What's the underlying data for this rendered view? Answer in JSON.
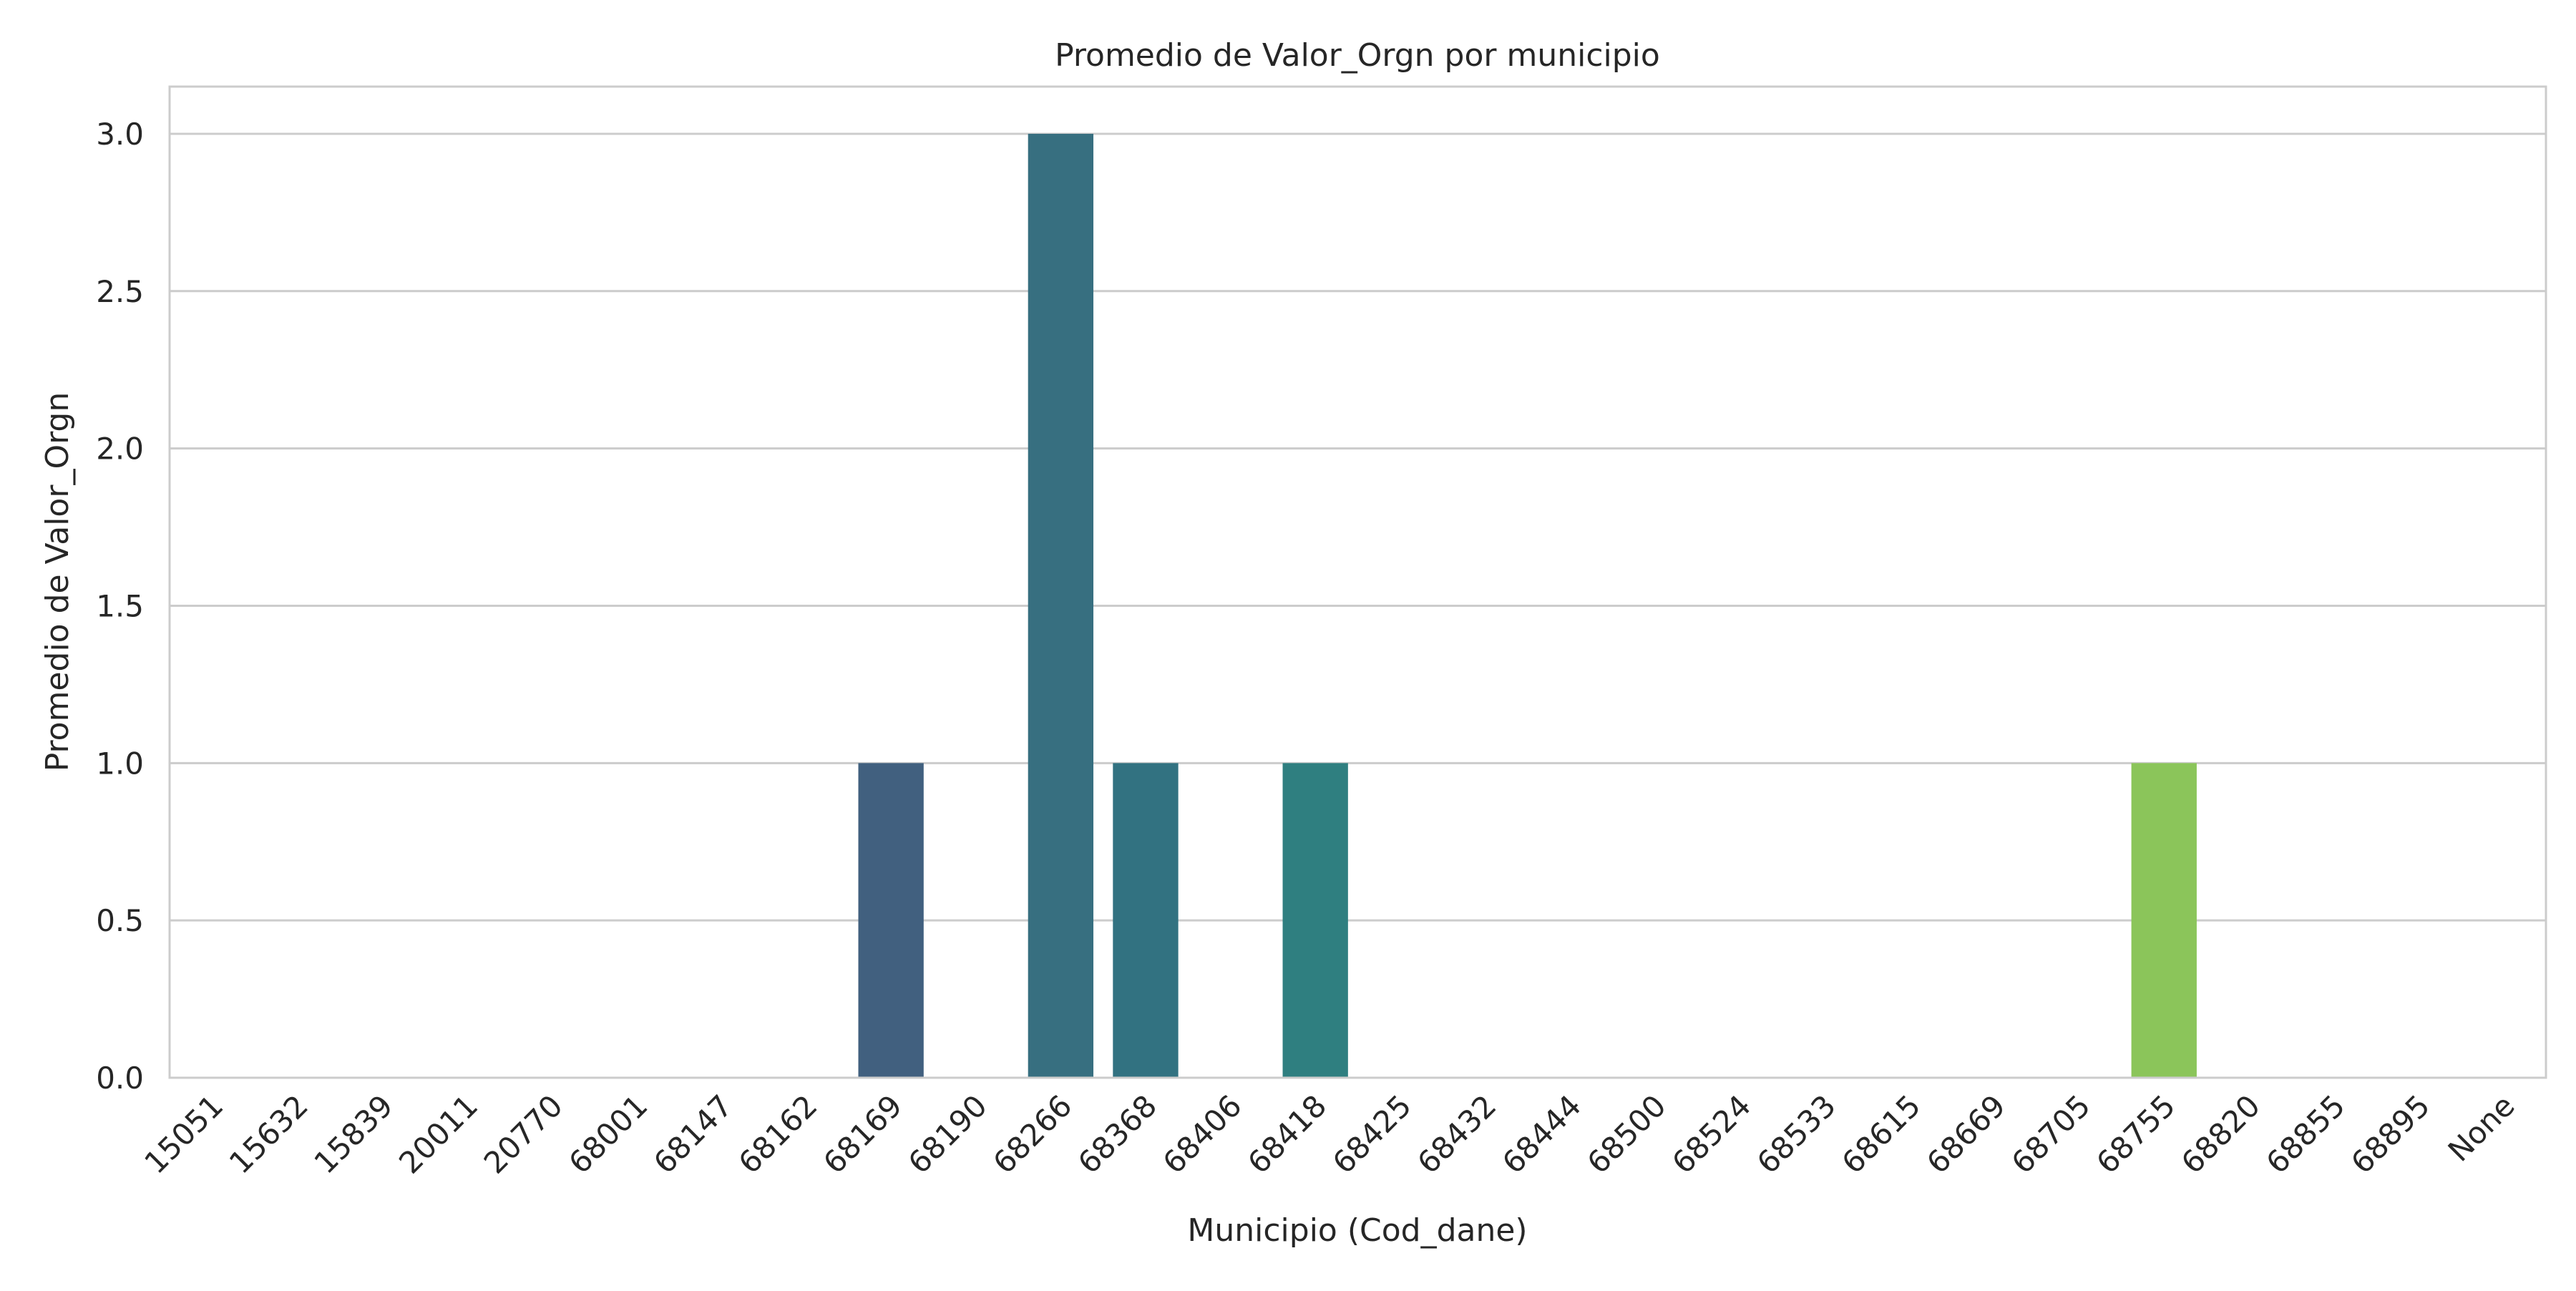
{
  "chart_data": {
    "type": "bar",
    "title": "Promedio de Valor_Orgn por municipio",
    "xlabel": "Municipio (Cod_dane)",
    "ylabel": "Promedio de Valor_Orgn",
    "ylim": [
      0,
      3.15
    ],
    "yticks": [
      "0.0",
      "0.5",
      "1.0",
      "1.5",
      "2.0",
      "2.5",
      "3.0"
    ],
    "grid": true,
    "categories": [
      "15051",
      "15632",
      "15839",
      "20011",
      "20770",
      "68001",
      "68147",
      "68162",
      "68169",
      "68190",
      "68266",
      "68368",
      "68406",
      "68418",
      "68425",
      "68432",
      "68444",
      "68500",
      "68524",
      "68533",
      "68615",
      "68669",
      "68705",
      "68755",
      "68820",
      "68855",
      "68895",
      "None"
    ],
    "values": [
      0,
      0,
      0,
      0,
      0,
      0,
      0,
      0,
      1,
      0,
      3,
      1,
      0,
      1,
      0,
      0,
      0,
      0,
      0,
      0,
      0,
      0,
      0,
      1,
      0,
      0,
      0,
      0
    ],
    "colors": [
      "#48186a",
      "#471e70",
      "#472a7a",
      "#453781",
      "#424086",
      "#3e4b8a",
      "#3a548c",
      "#365d8d",
      "#41607f",
      "#2f6b8e",
      "#376f80",
      "#327281",
      "#277f8e",
      "#2f7f80",
      "#21918c",
      "#1f9a8a",
      "#20a386",
      "#28ae80",
      "#3ab67b",
      "#4ec16f",
      "#63c964",
      "#7ad151",
      "#95d840",
      "#8bc55a",
      "#b2dd2d",
      "#d0e11c",
      "#e7e419",
      "#fde725"
    ]
  }
}
